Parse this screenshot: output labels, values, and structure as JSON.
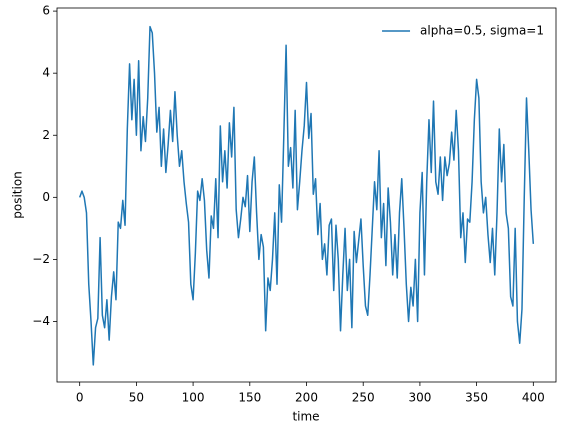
{
  "chart_data": {
    "type": "line",
    "xlabel": "time",
    "ylabel": "position",
    "x": [
      0,
      2,
      4,
      6,
      8,
      10,
      12,
      14,
      16,
      18,
      20,
      22,
      24,
      26,
      28,
      30,
      32,
      34,
      36,
      38,
      40,
      42,
      44,
      46,
      48,
      50,
      52,
      54,
      56,
      58,
      60,
      62,
      64,
      66,
      68,
      70,
      72,
      74,
      76,
      78,
      80,
      82,
      84,
      86,
      88,
      90,
      92,
      94,
      96,
      98,
      100,
      102,
      104,
      106,
      108,
      110,
      112,
      114,
      116,
      118,
      120,
      122,
      124,
      126,
      128,
      130,
      132,
      134,
      136,
      138,
      140,
      142,
      144,
      146,
      148,
      150,
      152,
      154,
      156,
      158,
      160,
      162,
      164,
      166,
      168,
      170,
      172,
      174,
      176,
      178,
      180,
      182,
      184,
      186,
      188,
      190,
      192,
      194,
      196,
      198,
      200,
      202,
      204,
      206,
      208,
      210,
      212,
      214,
      216,
      218,
      220,
      222,
      224,
      226,
      228,
      230,
      232,
      234,
      236,
      238,
      240,
      242,
      244,
      246,
      248,
      250,
      252,
      254,
      256,
      258,
      260,
      262,
      264,
      266,
      268,
      270,
      272,
      274,
      276,
      278,
      280,
      282,
      284,
      286,
      288,
      290,
      292,
      294,
      296,
      298,
      300,
      302,
      304,
      306,
      308,
      310,
      312,
      314,
      316,
      318,
      320,
      322,
      324,
      326,
      328,
      330,
      332,
      334,
      336,
      338,
      340,
      342,
      344,
      346,
      348,
      350,
      352,
      354,
      356,
      358,
      360,
      362,
      364,
      366,
      368,
      370,
      372,
      374,
      376,
      378,
      380,
      382,
      384,
      386,
      388,
      390,
      392,
      394,
      396,
      398,
      400
    ],
    "series": [
      {
        "name": "alpha=0.5, sigma=1",
        "color": "#1f77b4",
        "values": [
          0,
          0.2,
          0,
          -0.5,
          -2.8,
          -4.0,
          -5.4,
          -4.2,
          -3.9,
          -1.3,
          -3.8,
          -4.2,
          -3.3,
          -4.6,
          -3.2,
          -2.4,
          -3.3,
          -0.8,
          -1.0,
          -0.1,
          -0.9,
          2.2,
          4.3,
          2.5,
          3.8,
          2.0,
          4.4,
          1.5,
          2.6,
          1.8,
          3.2,
          5.5,
          5.3,
          4.0,
          2.1,
          2.9,
          1.0,
          2.2,
          0.8,
          1.7,
          2.8,
          1.8,
          3.4,
          2.0,
          1.0,
          1.5,
          0.5,
          -0.2,
          -0.8,
          -2.8,
          -3.3,
          -1.8,
          0.2,
          -0.1,
          0.6,
          -0.1,
          -1.7,
          -2.6,
          -0.6,
          -1.0,
          0.6,
          -1.3,
          2.3,
          0.5,
          1.5,
          0.3,
          2.4,
          1.3,
          2.9,
          -0.4,
          -1.3,
          -0.7,
          0.0,
          -0.3,
          0.7,
          -1.1,
          0.5,
          1.3,
          -0.5,
          -2.0,
          -1.2,
          -1.6,
          -4.3,
          -2.6,
          -3.0,
          -2.0,
          -0.5,
          -2.8,
          0.4,
          -0.8,
          2.0,
          4.9,
          1.0,
          1.6,
          0.3,
          2.8,
          -0.4,
          0.5,
          1.5,
          2.3,
          3.7,
          1.9,
          2.7,
          0.1,
          0.6,
          -1.2,
          -0.2,
          -2.0,
          -1.5,
          -2.5,
          -0.9,
          -0.7,
          -3.0,
          -0.9,
          -2.0,
          -4.3,
          -2.5,
          -1.0,
          -3.0,
          -2.0,
          -4.2,
          -1.1,
          -2.1,
          -1.4,
          -0.7,
          -2.2,
          -3.5,
          -3.8,
          -2.5,
          -1.0,
          0.5,
          -0.4,
          1.5,
          -1.3,
          -0.2,
          -2.2,
          0.3,
          -0.8,
          -2.5,
          -1.2,
          -2.6,
          -0.5,
          0.6,
          -1.0,
          -2.8,
          -4.0,
          -2.9,
          -3.5,
          -2.0,
          -4.0,
          -0.5,
          0.8,
          -2.5,
          0.5,
          2.5,
          0.8,
          3.1,
          0.5,
          0.1,
          1.3,
          -0.1,
          1.3,
          0.7,
          1.1,
          2.1,
          1.2,
          2.8,
          1.5,
          -1.3,
          -0.5,
          -2.1,
          -0.7,
          -0.8,
          0.5,
          2.5,
          3.8,
          3.2,
          0.5,
          -0.5,
          0.0,
          -1.2,
          -2.1,
          -1.0,
          -2.5,
          -0.5,
          2.2,
          0.5,
          1.7,
          -0.5,
          -1.0,
          -3.2,
          -3.5,
          -1.0,
          -4.0,
          -4.7,
          -3.6,
          0.0,
          3.2,
          1.5,
          -0.4,
          -1.5
        ]
      }
    ],
    "xlim": [
      -20,
      420
    ],
    "xticks": [
      0,
      50,
      100,
      150,
      200,
      250,
      300,
      350,
      400
    ],
    "ylim": [
      -5.95,
      6.1
    ],
    "yticks": [
      {
        "value": -4,
        "label": "−4"
      },
      {
        "value": -2,
        "label": "−2"
      },
      0,
      2,
      4,
      6
    ],
    "legend": "upper right"
  }
}
